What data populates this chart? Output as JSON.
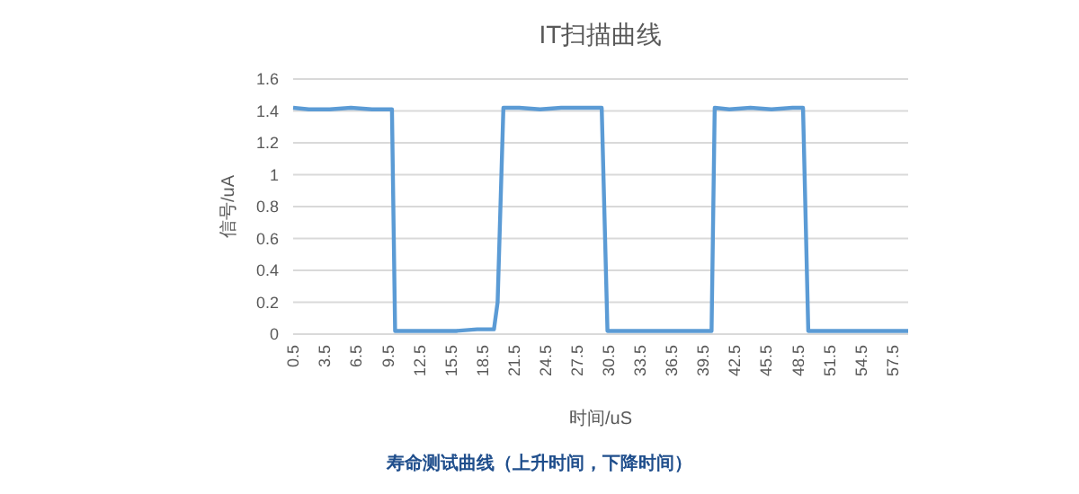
{
  "chart_data": {
    "type": "line",
    "title": "IT扫描曲线",
    "xlabel": "时间/uS",
    "ylabel": "信号/uA",
    "annotations": [
      "寿命测试曲线（上升时间，下降时间）"
    ],
    "x": [
      0.5,
      2,
      4,
      6,
      8,
      9.9,
      10.2,
      12,
      14,
      16,
      18,
      19.6,
      19.95,
      20.5,
      22,
      24,
      26,
      28,
      29.85,
      30.4,
      32,
      34,
      36,
      38,
      40.3,
      40.6,
      42,
      44,
      46,
      48,
      49.0,
      49.5,
      52,
      55,
      59
    ],
    "series": [
      {
        "color": "#5b9bd5",
        "values": [
          1.42,
          1.41,
          1.41,
          1.42,
          1.41,
          1.41,
          0.02,
          0.02,
          0.02,
          0.02,
          0.03,
          0.03,
          0.2,
          1.42,
          1.42,
          1.41,
          1.42,
          1.42,
          1.42,
          0.02,
          0.02,
          0.02,
          0.02,
          0.02,
          0.02,
          1.42,
          1.41,
          1.42,
          1.41,
          1.42,
          1.42,
          0.02,
          0.02,
          0.02,
          0.02
        ]
      }
    ],
    "xlim": [
      0.5,
      59
    ],
    "xticks": [
      0.5,
      3.5,
      6.5,
      9.5,
      12.5,
      15.5,
      18.5,
      21.5,
      24.5,
      27.5,
      30.5,
      33.5,
      36.5,
      39.5,
      42.5,
      45.5,
      48.5,
      51.5,
      54.5,
      57.5
    ],
    "ylim": [
      0,
      1.6
    ],
    "yticks": [
      0,
      0.2,
      0.4,
      0.6,
      0.8,
      1,
      1.2,
      1.4,
      1.6
    ],
    "grid": "y",
    "marker": "none",
    "line_style": "solid"
  }
}
